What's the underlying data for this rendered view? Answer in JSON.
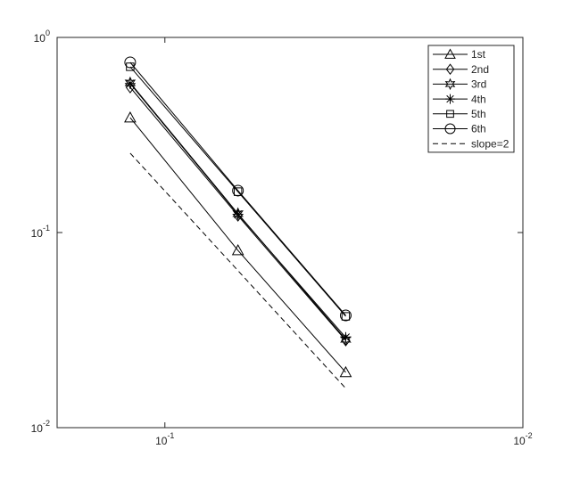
{
  "chart_data": {
    "type": "line",
    "x": [
      0.125,
      0.0625,
      0.03125
    ],
    "xlim": [
      0.01,
      0.2
    ],
    "xdir": "reverse",
    "xscale": "log",
    "yscale": "log",
    "xticks": [
      {
        "value": 0.1,
        "label": "10^-1"
      },
      {
        "value": 0.01,
        "label": "10^-2"
      }
    ],
    "ylim": [
      0.01,
      1
    ],
    "yticks": [
      {
        "value": 0.01,
        "label": "10^-2"
      },
      {
        "value": 0.1,
        "label": "10^-1"
      },
      {
        "value": 1,
        "label": "10^0"
      }
    ],
    "legend": "upper right",
    "series": [
      {
        "name": "1st",
        "color": "#000000",
        "marker": "triangle",
        "linestyle": "solid",
        "values": [
          0.388,
          0.081,
          0.0192
        ]
      },
      {
        "name": "2nd",
        "color": "#000000",
        "marker": "diamond",
        "linestyle": "solid",
        "values": [
          0.555,
          0.122,
          0.028
        ]
      },
      {
        "name": "3rd",
        "color": "#000000",
        "marker": "hexagram",
        "linestyle": "solid",
        "values": [
          0.585,
          0.125,
          0.0283
        ]
      },
      {
        "name": "4th",
        "color": "#000000",
        "marker": "asterisk",
        "linestyle": "solid",
        "values": [
          0.58,
          0.124,
          0.029
        ]
      },
      {
        "name": "5th",
        "color": "#000000",
        "marker": "square",
        "linestyle": "solid",
        "values": [
          0.707,
          0.162,
          0.0372
        ]
      },
      {
        "name": "6th",
        "color": "#000000",
        "marker": "circle",
        "linestyle": "solid",
        "values": [
          0.745,
          0.164,
          0.0376
        ]
      },
      {
        "name": "slope=2",
        "color": "#000000",
        "marker": "none",
        "linestyle": "dashed",
        "values": [
          0.255,
          0.0638,
          0.0159
        ]
      }
    ]
  }
}
